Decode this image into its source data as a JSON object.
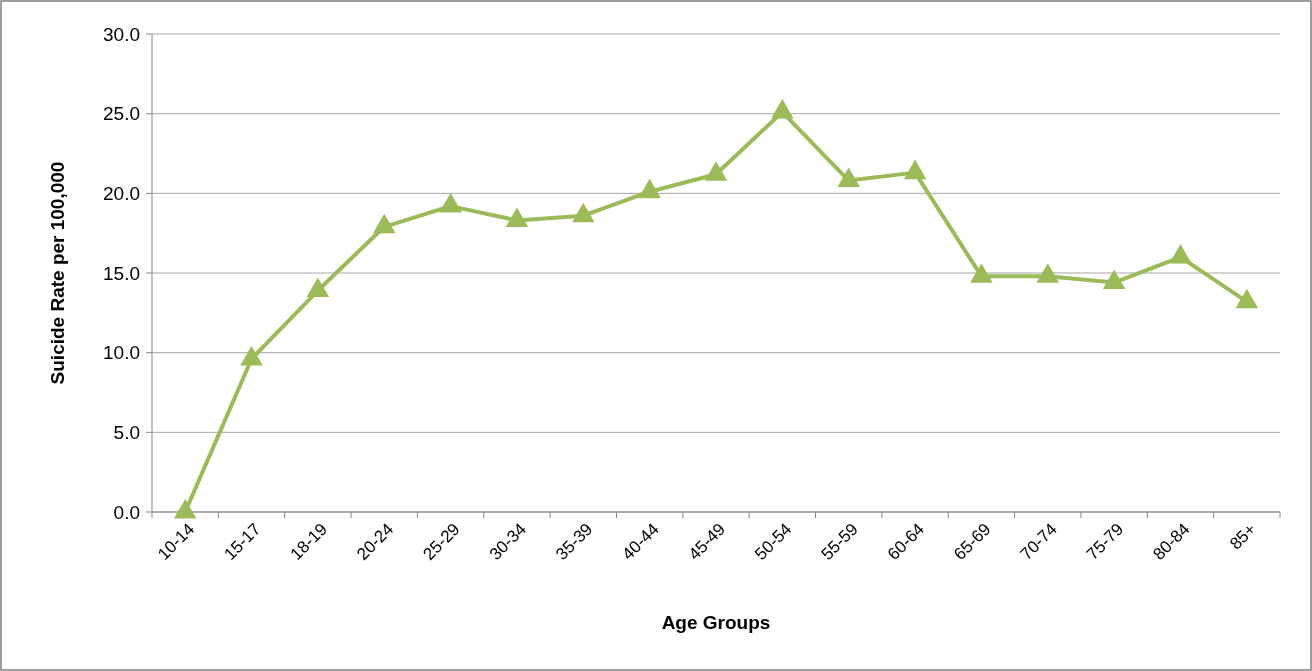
{
  "chart_data": {
    "type": "line",
    "xlabel": "Age Groups",
    "ylabel": "Suicide Rate per 100,000",
    "categories": [
      "10-14",
      "15-17",
      "18-19",
      "20-24",
      "25-29",
      "30-34",
      "35-39",
      "40-44",
      "45-49",
      "50-54",
      "55-59",
      "60-64",
      "65-69",
      "70-74",
      "75-79",
      "80-84",
      "85+"
    ],
    "series": [
      {
        "color": "#9bbb59",
        "values": [
          0.0,
          9.6,
          13.9,
          17.9,
          19.2,
          18.3,
          18.6,
          20.1,
          21.2,
          25.1,
          20.8,
          21.3,
          14.8,
          14.8,
          14.4,
          16.0,
          13.2
        ]
      }
    ],
    "ylim": [
      0,
      30
    ],
    "yticks": [
      {
        "value": 0,
        "label": "0.0"
      },
      {
        "value": 5,
        "label": "5.0"
      },
      {
        "value": 10,
        "label": "10.0"
      },
      {
        "value": 15,
        "label": "15.0"
      },
      {
        "value": 20,
        "label": "20.0"
      },
      {
        "value": 25,
        "label": "25.0"
      },
      {
        "value": 30,
        "label": "30.0"
      }
    ],
    "grid": "y",
    "marker": "triangle",
    "line_style": "solid"
  }
}
